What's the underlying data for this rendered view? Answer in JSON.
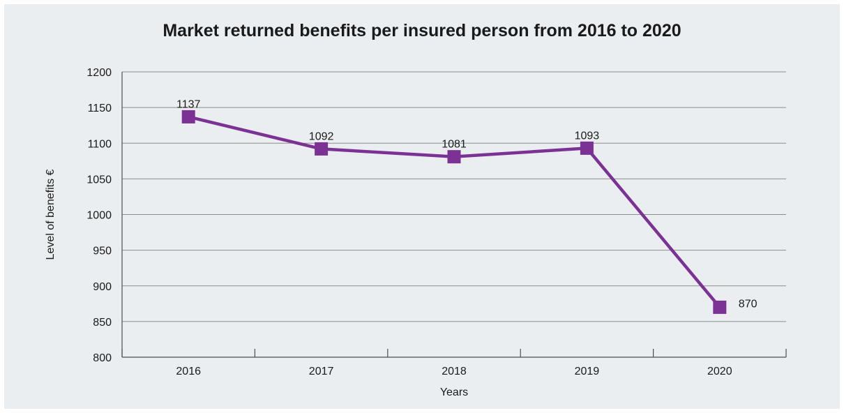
{
  "chart_data": {
    "type": "line",
    "title": "Market returned benefits per insured person from 2016 to 2020",
    "xlabel": "Years",
    "ylabel": "Level of benefits €",
    "categories": [
      "2016",
      "2017",
      "2018",
      "2019",
      "2020"
    ],
    "series": [
      {
        "values": [
          1137,
          1092,
          1081,
          1093,
          870
        ],
        "color": "#7b3294",
        "marker": "square",
        "data_labels": [
          "1137",
          "1092",
          "1081",
          "1093",
          "870"
        ]
      }
    ],
    "ylim": [
      800,
      1200
    ],
    "yticks": [
      "800",
      "850",
      "900",
      "950",
      "1000",
      "1050",
      "1100",
      "1150",
      "1200"
    ],
    "grid": "horizontal",
    "legend": "none",
    "background": "#eaeef0"
  }
}
